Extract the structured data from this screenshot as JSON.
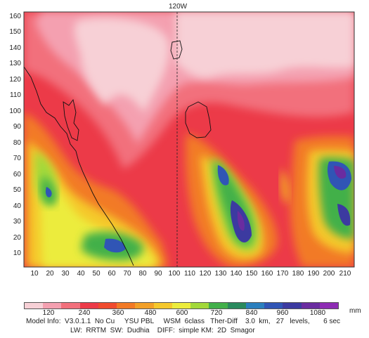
{
  "map": {
    "top_label": "120W",
    "y_ticks": [
      "10",
      "20",
      "30",
      "40",
      "50",
      "60",
      "70",
      "80",
      "90",
      "100",
      "110",
      "120",
      "130",
      "140",
      "150",
      "160"
    ],
    "x_ticks": [
      "10",
      "20",
      "30",
      "40",
      "50",
      "60",
      "70",
      "80",
      "90",
      "100",
      "110",
      "120",
      "130",
      "140",
      "150",
      "160",
      "170",
      "180",
      "190",
      "200",
      "210"
    ]
  },
  "legend": {
    "colors": [
      "#f7d0d6",
      "#f4a0b0",
      "#f2707c",
      "#ec3a48",
      "#f04b2e",
      "#f27a26",
      "#f2a028",
      "#f5c82c",
      "#ecec3c",
      "#a2d93a",
      "#42b04a",
      "#2a8a5e",
      "#2a7fbe",
      "#3055b5",
      "#3c3aa0",
      "#6a2ca0",
      "#8e2cb4"
    ],
    "labels": [
      "120",
      "240",
      "360",
      "480",
      "600",
      "720",
      "840",
      "960",
      "1080"
    ],
    "unit": "mm"
  },
  "model_info": {
    "line1": "Model Info:  V3.0.1.1  No Cu     YSU PBL     WSM  6class   Ther-Diff    3.0  km,   27   levels,       6 sec",
    "line2": "LW:  RRTM  SW:  Dudhia    DIFF:  simple KM:  2D  Smagor"
  }
}
